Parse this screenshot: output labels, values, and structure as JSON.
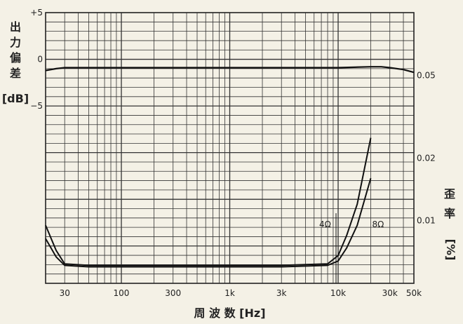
{
  "chart_data": {
    "type": "line",
    "title": "",
    "xlabel": "周 波 数 [Hz]",
    "x_axis": {
      "scale": "log",
      "range": [
        20,
        50000
      ],
      "tick_labels": [
        "30",
        "100",
        "300",
        "1k",
        "3k",
        "10k",
        "30k",
        "50k"
      ],
      "tick_values": [
        30,
        100,
        300,
        1000,
        3000,
        10000,
        30000,
        50000
      ]
    },
    "y_left": {
      "label_chars": [
        "出",
        "力",
        "偏",
        "差"
      ],
      "label_unit": "[dB]",
      "range": [
        -24,
        5
      ],
      "tick_labels": [
        "+5",
        "0",
        "−5"
      ],
      "tick_values": [
        5,
        0,
        -5
      ]
    },
    "y_right": {
      "label_chars": [
        "歪",
        "率"
      ],
      "label_unit": "[%]",
      "scale": "log",
      "range": [
        0.005,
        0.1
      ],
      "tick_labels": [
        "0.05",
        "0.02",
        "0.01"
      ],
      "tick_values": [
        0.05,
        0.02,
        0.01
      ]
    },
    "grid": true,
    "series": [
      {
        "name": "",
        "axis": "left",
        "x": [
          20,
          25,
          30,
          50,
          100,
          300,
          1000,
          3000,
          10000,
          20000,
          25000,
          30000,
          40000,
          50000
        ],
        "y": [
          -1.2,
          -1.0,
          -0.9,
          -0.9,
          -0.9,
          -0.9,
          -0.9,
          -0.9,
          -0.9,
          -0.8,
          -0.8,
          -0.9,
          -1.1,
          -1.4
        ]
      },
      {
        "name": "4Ω",
        "axis": "right",
        "x": [
          20,
          25,
          30,
          50,
          100,
          300,
          1000,
          3000,
          8000,
          10000,
          12000,
          15000,
          20000
        ],
        "y": [
          0.0095,
          0.0072,
          0.0062,
          0.0061,
          0.0061,
          0.0061,
          0.0061,
          0.0061,
          0.0062,
          0.0068,
          0.0085,
          0.012,
          0.025
        ],
        "style": "dashed-solid"
      },
      {
        "name": "8Ω",
        "axis": "right",
        "x": [
          20,
          25,
          30,
          50,
          100,
          300,
          1000,
          3000,
          8000,
          10000,
          12000,
          15000,
          20000
        ],
        "y": [
          0.0082,
          0.0067,
          0.0061,
          0.006,
          0.006,
          0.006,
          0.006,
          0.006,
          0.0061,
          0.0064,
          0.0074,
          0.0095,
          0.016
        ]
      }
    ]
  }
}
